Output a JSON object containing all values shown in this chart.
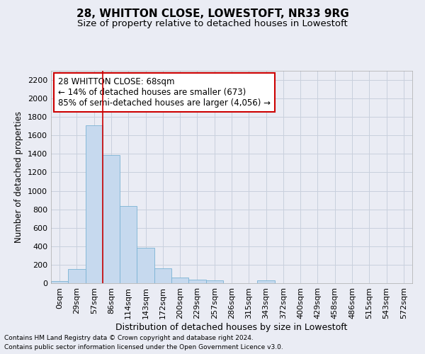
{
  "title1": "28, WHITTON CLOSE, LOWESTOFT, NR33 9RG",
  "title2": "Size of property relative to detached houses in Lowestoft",
  "xlabel": "Distribution of detached houses by size in Lowestoft",
  "ylabel": "Number of detached properties",
  "footer1": "Contains HM Land Registry data © Crown copyright and database right 2024.",
  "footer2": "Contains public sector information licensed under the Open Government Licence v3.0.",
  "bin_labels": [
    "0sqm",
    "29sqm",
    "57sqm",
    "86sqm",
    "114sqm",
    "143sqm",
    "172sqm",
    "200sqm",
    "229sqm",
    "257sqm",
    "286sqm",
    "315sqm",
    "343sqm",
    "372sqm",
    "400sqm",
    "429sqm",
    "458sqm",
    "486sqm",
    "515sqm",
    "543sqm",
    "572sqm"
  ],
  "bar_values": [
    20,
    155,
    1710,
    1390,
    835,
    385,
    160,
    65,
    35,
    28,
    0,
    0,
    28,
    0,
    0,
    0,
    0,
    0,
    0,
    0,
    0
  ],
  "bar_color": "#c6d9ee",
  "bar_edge_color": "#7ab3d4",
  "grid_color": "#c8d0dd",
  "background_color": "#eaecf4",
  "vline_x": 2.5,
  "vline_color": "#cc0000",
  "annotation_text": "28 WHITTON CLOSE: 68sqm\n← 14% of detached houses are smaller (673)\n85% of semi-detached houses are larger (4,056) →",
  "annotation_box_color": "#cc0000",
  "ylim": [
    0,
    2300
  ],
  "yticks": [
    0,
    200,
    400,
    600,
    800,
    1000,
    1200,
    1400,
    1600,
    1800,
    2000,
    2200
  ],
  "title1_fontsize": 11,
  "title2_fontsize": 9.5,
  "xlabel_fontsize": 9,
  "ylabel_fontsize": 8.5,
  "tick_fontsize": 8,
  "footer_fontsize": 6.5,
  "annotation_fontsize": 8.5
}
